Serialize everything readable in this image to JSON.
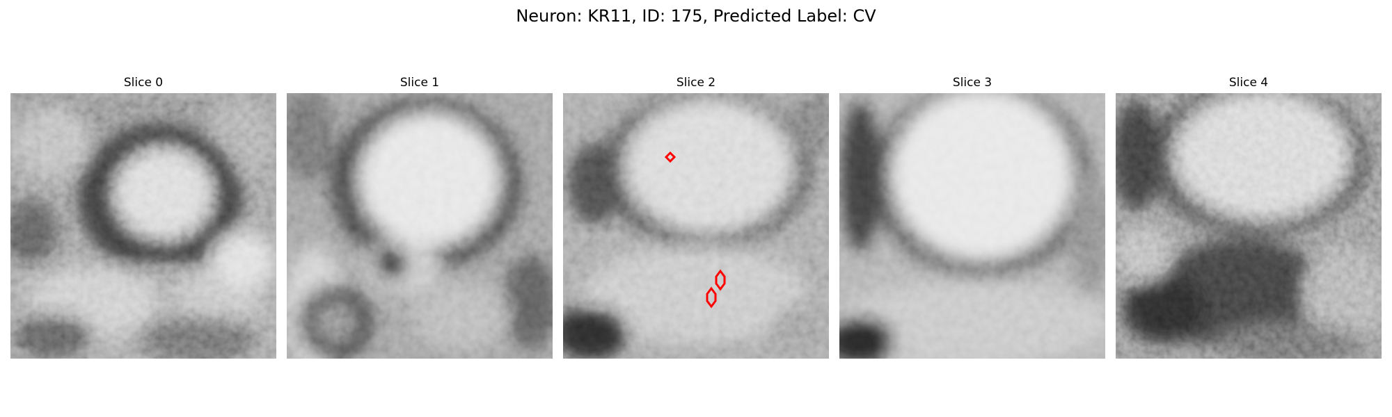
{
  "figure": {
    "title": "Neuron: KR11, ID: 175, Predicted Label: CV"
  },
  "panels": [
    {
      "title": "Slice 0"
    },
    {
      "title": "Slice 1"
    },
    {
      "title": "Slice 2"
    },
    {
      "title": "Slice 3"
    },
    {
      "title": "Slice 4"
    }
  ],
  "colors": {
    "background": "#ffffff",
    "marker_outline": "#ff0000"
  },
  "colormap": "grayscale"
}
